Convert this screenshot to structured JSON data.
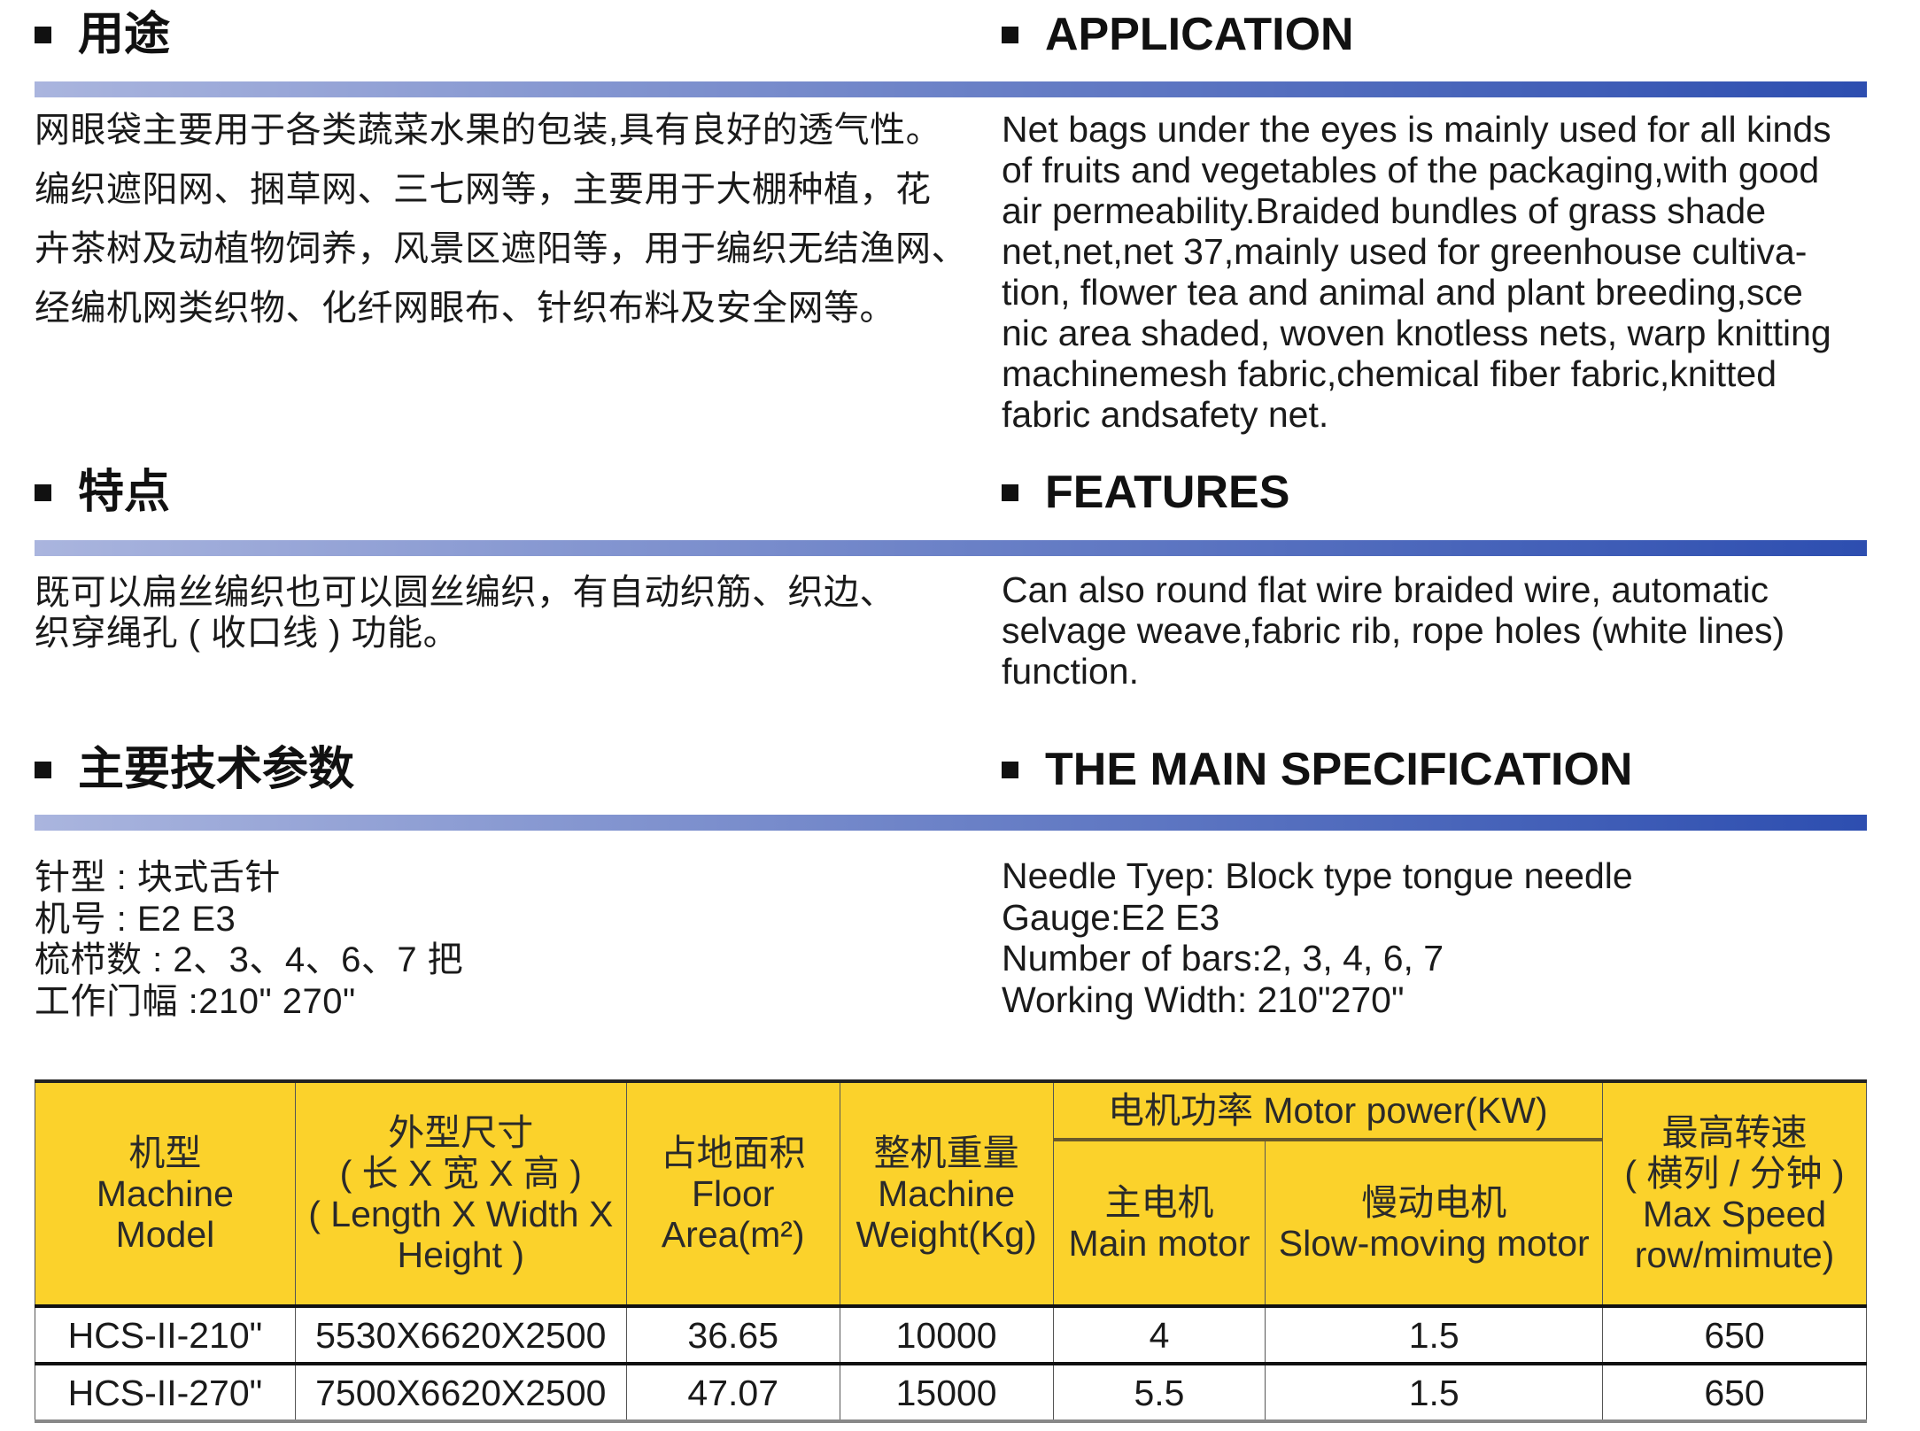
{
  "application": {
    "heading_zh": "用途",
    "heading_en": "APPLICATION",
    "text_zh": [
      "网眼袋主要用于各类蔬菜水果的包装,具有良好的透气性。",
      "编织遮阳网、捆草网、三七网等，主要用于大棚种植，花",
      "卉茶树及动植物饲养，风景区遮阳等，用于编织无结渔网、",
      "经编机网类织物、化纤网眼布、针织布料及安全网等。"
    ],
    "text_en": [
      "Net bags under the eyes is mainly used for all kinds",
      "of fruits and vegetables of the packaging,with good",
      "air permeability.Braided bundles of grass shade",
      "net,net,net 37,mainly used for greenhouse cultiva-",
      "tion, flower tea and animal and plant breeding,sce",
      "nic area shaded, woven knotless nets, warp knitting",
      "machinemesh  fabric,chemical fiber fabric,knitted",
      "fabric andsafety net."
    ]
  },
  "features": {
    "heading_zh": "特点",
    "heading_en": "FEATURES",
    "text_zh": [
      "既可以扁丝编织也可以圆丝编织，有自动织筋、织边、",
      "织穿绳孔 ( 收口线 ) 功能。"
    ],
    "text_en": [
      "Can also round flat wire braided wire, automatic",
      "selvage weave,fabric rib, rope holes (white lines)",
      "function."
    ]
  },
  "spec": {
    "heading_zh": "主要技术参数",
    "heading_en": "THE MAIN SPECIFICATION",
    "text_zh": [
      "针型 : 块式舌针",
      "机号 : E2 E3",
      "梳栉数 : 2、3、4、6、7 把",
      "工作门幅 :210\" 270\""
    ],
    "text_en": [
      "Needle Tyep: Block type tongue needle",
      "Gauge:E2 E3",
      "Number of bars:2, 3, 4, 6, 7",
      "Working Width: 210\"270\""
    ]
  },
  "table": {
    "headers": {
      "model": [
        "机型",
        "Machine",
        "Model"
      ],
      "size": [
        "外型尺寸",
        "( 长 X 宽 X 高 )",
        "( Length X Width X",
        "Height )"
      ],
      "area": [
        "占地面积",
        "Floor",
        "Area(m²)"
      ],
      "weight": [
        "整机重量",
        "Machine",
        "Weight(Kg)"
      ],
      "motor": "电机功率 Motor power(KW)",
      "main_motor": [
        "主电机",
        "Main motor"
      ],
      "slow_motor": [
        "慢动电机",
        "Slow-moving motor"
      ],
      "speed": [
        "最高转速",
        "( 横列 / 分钟 )",
        "Max Speed",
        "row/mimute)"
      ]
    },
    "rows": [
      [
        "HCS-II-210\"",
        "5530X6620X2500",
        "36.65",
        "10000",
        "4",
        "1.5",
        "650"
      ],
      [
        "HCS-II-270\"",
        "7500X6620X2500",
        "47.07",
        "15000",
        "5.5",
        "1.5",
        "650"
      ]
    ],
    "header_color": "#fbd22b"
  },
  "colors": {
    "bar_start": "#aab5de",
    "bar_end": "#2d4eb0"
  }
}
